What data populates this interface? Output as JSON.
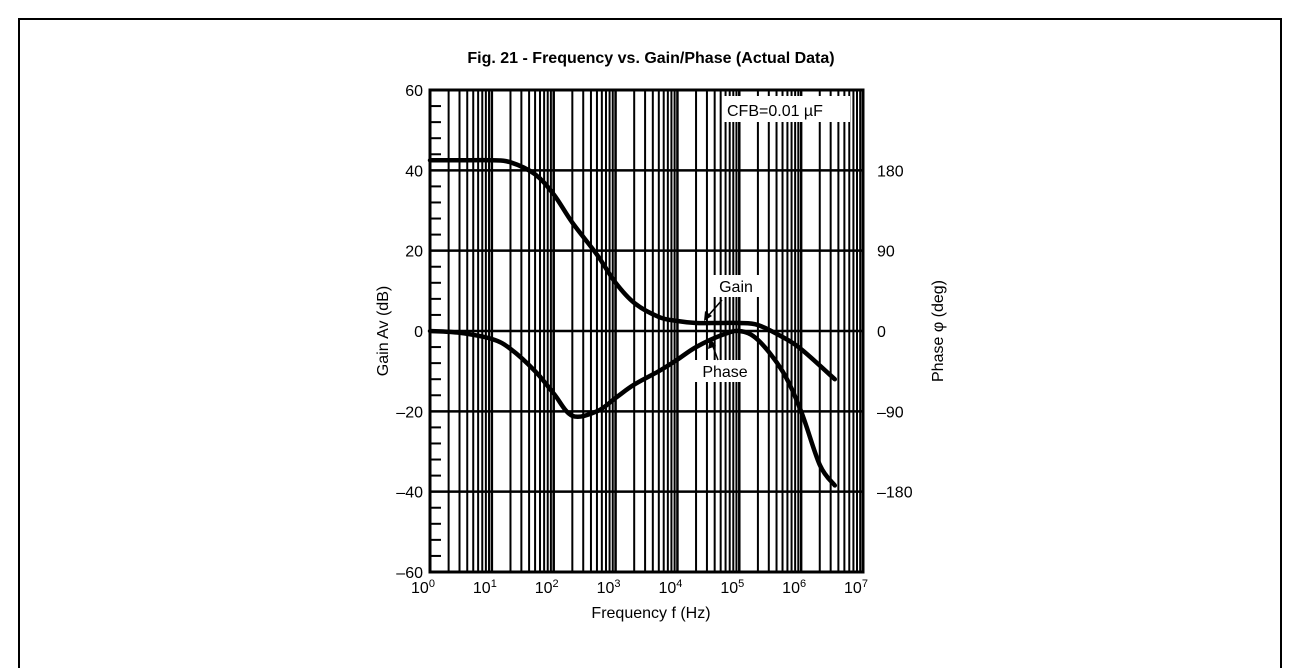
{
  "chart_data": {
    "type": "line",
    "title": "Fig. 21 - Frequency vs. Gain/Phase (Actual Data)",
    "xlabel": "Frequency f (Hz)",
    "ylabel_left": "Gain Av (dB)",
    "ylabel_right": "Phase φ (deg)",
    "annotation": "CFB=0.01 µF",
    "x_scale": "log",
    "xlim": [
      1,
      10000000
    ],
    "ylim_left": [
      -60,
      60
    ],
    "ylim_right": [
      -270,
      270
    ],
    "grid": true,
    "x_ticks": [
      {
        "base": "10",
        "exp": "0"
      },
      {
        "base": "10",
        "exp": "1"
      },
      {
        "base": "10",
        "exp": "2"
      },
      {
        "base": "10",
        "exp": "3"
      },
      {
        "base": "10",
        "exp": "4"
      },
      {
        "base": "10",
        "exp": "5"
      },
      {
        "base": "10",
        "exp": "6"
      },
      {
        "base": "10",
        "exp": "7"
      }
    ],
    "y_ticks_left": [
      "60",
      "40",
      "20",
      "0",
      "–20",
      "–40",
      "–60"
    ],
    "y_ticks_right": [
      "180",
      "90",
      "0",
      "–90",
      "–180"
    ],
    "series": [
      {
        "name": "Gain",
        "axis": "left",
        "x": [
          1,
          3,
          10,
          20,
          50,
          100,
          200,
          500,
          1000,
          2000,
          5000,
          10000,
          20000,
          50000,
          100000,
          200000,
          500000,
          1000000,
          3500000
        ],
        "y": [
          42.5,
          42.5,
          42.5,
          42,
          39,
          34,
          27,
          19,
          12,
          7,
          3.5,
          2.5,
          2,
          2,
          2,
          1.5,
          -1.5,
          -4.5,
          -12
        ]
      },
      {
        "name": "Phase",
        "axis": "right",
        "x": [
          1,
          3,
          10,
          20,
          50,
          100,
          200,
          500,
          1000,
          2000,
          5000,
          10000,
          20000,
          50000,
          100000,
          200000,
          500000,
          1000000,
          2000000,
          3500000
        ],
        "y": [
          0,
          -2,
          -9,
          -20,
          -45,
          -70,
          -95,
          -90,
          -75,
          -60,
          -45,
          -32,
          -18,
          -5,
          0,
          -10,
          -45,
          -90,
          -150,
          -173
        ]
      }
    ],
    "labels": {
      "gain": "Gain",
      "phase": "Phase"
    }
  }
}
